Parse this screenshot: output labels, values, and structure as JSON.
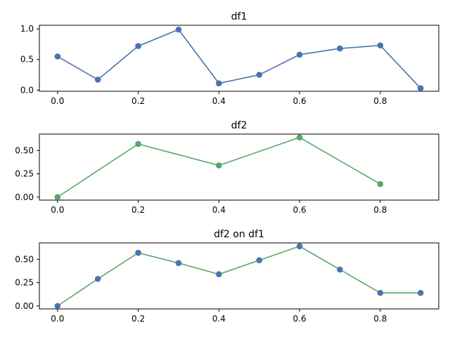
{
  "chart_data": [
    {
      "type": "line",
      "title": "df1",
      "xlabel": "",
      "ylabel": "",
      "xlim": [
        -0.045,
        0.945
      ],
      "ylim": [
        -0.02,
        1.06
      ],
      "xticks": [
        0.0,
        0.2,
        0.4,
        0.6,
        0.8
      ],
      "xtick_labels": [
        "0.0",
        "0.2",
        "0.4",
        "0.6",
        "0.8"
      ],
      "yticks": [
        0.0,
        0.5,
        1.0
      ],
      "ytick_labels": [
        "0.0",
        "0.5",
        "1.0"
      ],
      "grid": false,
      "series": [
        {
          "line_color": "#4c72b0",
          "marker_color": "#4c72b0",
          "x": [
            0.0,
            0.1,
            0.2,
            0.3,
            0.4,
            0.5,
            0.6,
            0.7,
            0.8,
            0.9
          ],
          "y": [
            0.55,
            0.17,
            0.72,
            0.99,
            0.11,
            0.25,
            0.58,
            0.68,
            0.73,
            0.03
          ]
        }
      ]
    },
    {
      "type": "line",
      "title": "df2",
      "xlabel": "",
      "ylabel": "",
      "xlim": [
        -0.045,
        0.945
      ],
      "ylim": [
        -0.032,
        0.676
      ],
      "xticks": [
        0.0,
        0.2,
        0.4,
        0.6,
        0.8
      ],
      "xtick_labels": [
        "0.0",
        "0.2",
        "0.4",
        "0.6",
        "0.8"
      ],
      "yticks": [
        0.0,
        0.25,
        0.5
      ],
      "ytick_labels": [
        "0.00",
        "0.25",
        "0.50"
      ],
      "grid": false,
      "series": [
        {
          "line_color": "#55a868",
          "marker_color": "#55a868",
          "x": [
            0.0,
            0.2,
            0.4,
            0.6,
            0.8
          ],
          "y": [
            0.0,
            0.57,
            0.34,
            0.64,
            0.14
          ]
        }
      ]
    },
    {
      "type": "line",
      "title": "df2 on df1",
      "xlabel": "",
      "ylabel": "",
      "xlim": [
        -0.045,
        0.945
      ],
      "ylim": [
        -0.032,
        0.676
      ],
      "xticks": [
        0.0,
        0.2,
        0.4,
        0.6,
        0.8
      ],
      "xtick_labels": [
        "0.0",
        "0.2",
        "0.4",
        "0.6",
        "0.8"
      ],
      "yticks": [
        0.0,
        0.25,
        0.5
      ],
      "ytick_labels": [
        "0.00",
        "0.25",
        "0.50"
      ],
      "grid": false,
      "series": [
        {
          "line_color": "#55a868",
          "marker_color": "#4c72b0",
          "x": [
            0.0,
            0.1,
            0.2,
            0.3,
            0.4,
            0.5,
            0.6,
            0.7,
            0.8,
            0.9
          ],
          "y": [
            0.0,
            0.29,
            0.57,
            0.46,
            0.34,
            0.49,
            0.64,
            0.39,
            0.14,
            0.14
          ]
        }
      ]
    }
  ]
}
